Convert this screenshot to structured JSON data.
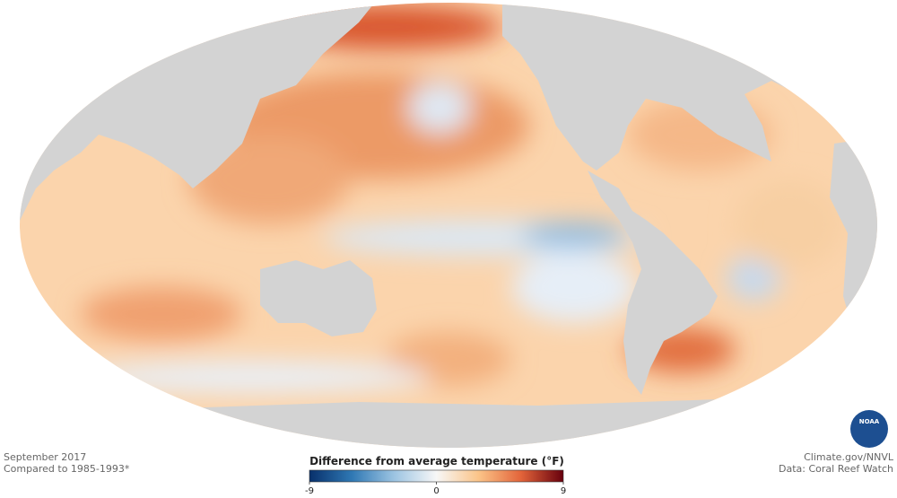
{
  "caption": {
    "date": "September 2017",
    "baseline": "Compared to 1985-1993*"
  },
  "credits": {
    "source": "Climate.gov/NNVL",
    "data": "Data: Coral Reef Watch"
  },
  "logo": "NOAA",
  "colorbar": {
    "title": "Difference from average temperature (°F)",
    "range": [
      -9,
      9
    ],
    "ticks": [
      -9,
      0,
      9
    ],
    "colors": [
      "#08306b",
      "#2f78b4",
      "#9cc4e2",
      "#f7f7f7",
      "#fbc488",
      "#e3643a",
      "#67000d"
    ]
  }
}
